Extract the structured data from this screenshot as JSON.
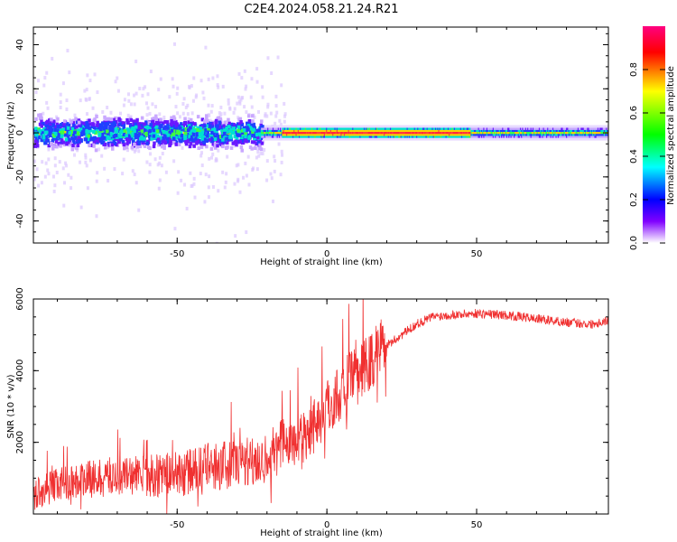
{
  "title": "C2E4.2024.058.21.24.R21",
  "chart_data": [
    {
      "type": "heatmap",
      "xlabel": "Height of straight line (km)",
      "ylabel": "Frequency (Hz)",
      "xlim": [
        -98,
        94
      ],
      "ylim": [
        -50,
        48
      ],
      "xticks": [
        -50,
        0,
        50
      ],
      "yticks": [
        -40,
        -20,
        0,
        20,
        40
      ],
      "grid": false,
      "colorbar": {
        "label": "Normalized spectral amplitude",
        "range": [
          0,
          1
        ],
        "ticks": [
          "0.0",
          "0.2",
          "0.4",
          "0.6",
          "0.8"
        ],
        "colormap": [
          "#ff0080",
          "#ff0000",
          "#ffff00",
          "#00ff00",
          "#00ffff",
          "#0000ff",
          "#8000ff",
          "#ffffff"
        ]
      },
      "band": {
        "center_hz": 0,
        "broad_segment_x": [
          -98,
          -22
        ],
        "broad_halfwidth_hz": 6,
        "narrow_segment_x": [
          -22,
          94
        ],
        "narrow_halfwidth_hz": 2,
        "peak_amplitude_region_x": [
          -15,
          48
        ]
      }
    },
    {
      "type": "line",
      "xlabel": "Height of straight line (km)",
      "ylabel": "SNR (10 * v/v)",
      "xlim": [
        -98,
        94
      ],
      "ylim": [
        0,
        6000
      ],
      "xticks": [
        -50,
        0,
        50
      ],
      "yticks": [
        2000,
        4000,
        6000
      ],
      "color": "#f03030",
      "grid": false,
      "series": [
        {
          "x": [
            -98,
            -90,
            -80,
            -70,
            -60,
            -50,
            -40,
            -30,
            -25,
            -20,
            -15,
            -10,
            -5,
            0,
            5,
            10,
            15,
            20,
            25,
            30,
            35,
            40,
            50,
            60,
            70,
            80,
            88,
            94
          ],
          "y": [
            400,
            700,
            800,
            900,
            900,
            900,
            1100,
            1200,
            1300,
            1300,
            1700,
            1800,
            2200,
            2700,
            3200,
            3600,
            4000,
            4700,
            5000,
            5300,
            5500,
            5550,
            5600,
            5550,
            5450,
            5350,
            5300,
            5400
          ]
        }
      ]
    }
  ]
}
